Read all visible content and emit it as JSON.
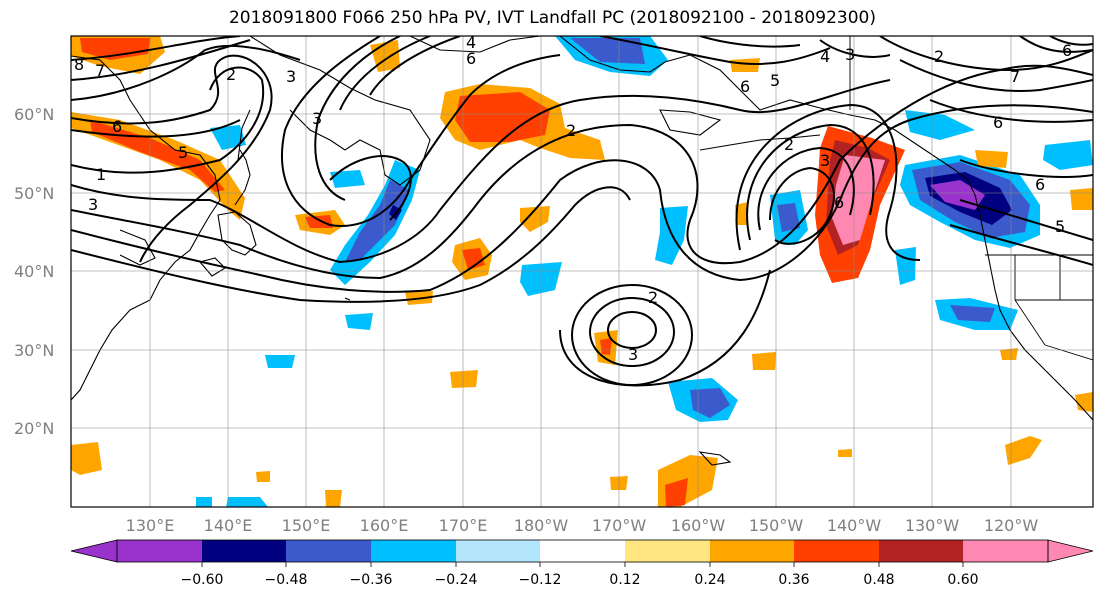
{
  "title": "2018091800 F066 250 hPa PV, IVT Landfall PC (2018092100 - 2018092300)",
  "lat_labels": [
    "60°N",
    "50°N",
    "40°N",
    "30°N",
    "20°N"
  ],
  "lon_labels": [
    "130°E",
    "140°E",
    "150°E",
    "160°E",
    "170°E",
    "180°W",
    "170°W",
    "160°W",
    "150°W",
    "140°W",
    "130°W",
    "120°W"
  ],
  "colorbar": {
    "colors": [
      "#9933cc",
      "#000080",
      "#3b5bcc",
      "#00bfff",
      "#b3e5fc",
      "#ffffff",
      "#ffe680",
      "#ffa500",
      "#ff4000",
      "#b22222",
      "#ff88b3"
    ],
    "tick_labels": [
      "−0.60",
      "−0.48",
      "−0.36",
      "−0.24",
      "−0.12",
      "0.12",
      "0.24",
      "0.36",
      "0.48",
      "0.60"
    ]
  },
  "contour_labels": [
    "8",
    "7",
    "6",
    "5",
    "1",
    "3",
    "2",
    "3",
    "4",
    "6",
    "2",
    "3",
    "6",
    "5",
    "4",
    "3",
    "2",
    "6",
    "2",
    "3",
    "6",
    "7",
    "6",
    "5",
    "6",
    "2",
    "3"
  ]
}
